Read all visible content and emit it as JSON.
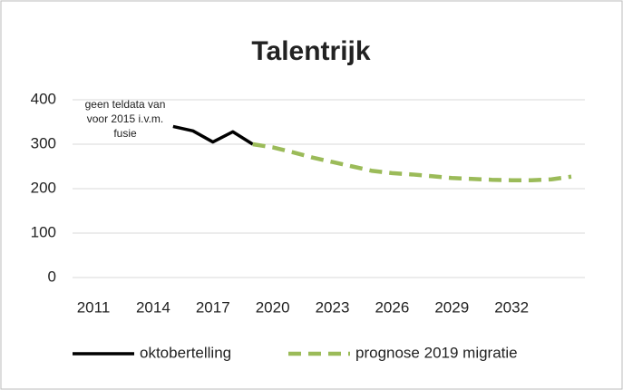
{
  "chart_data": {
    "type": "line",
    "title": "Talentrijk",
    "annotation": [
      "geen teldata van",
      "voor 2015 i.v.m.",
      "fusie"
    ],
    "x": [
      2015,
      2016,
      2017,
      2018,
      2019,
      2020,
      2021,
      2022,
      2023,
      2024,
      2025,
      2026,
      2027,
      2028,
      2029,
      2030,
      2031,
      2032,
      2033,
      2034,
      2035
    ],
    "series": [
      {
        "name": "oktobertelling",
        "color": "#000000",
        "dash": false,
        "values": [
          340,
          330,
          305,
          328,
          300,
          null,
          null,
          null,
          null,
          null,
          null,
          null,
          null,
          null,
          null,
          null,
          null,
          null,
          null,
          null,
          null
        ]
      },
      {
        "name": "prognose 2019 migratie",
        "color": "#9bbb59",
        "dash": true,
        "values": [
          null,
          null,
          null,
          null,
          300,
          293,
          282,
          270,
          260,
          250,
          240,
          235,
          232,
          228,
          224,
          222,
          220,
          219,
          219,
          221,
          227
        ]
      }
    ],
    "xlim": [
      2011,
      2035
    ],
    "xticks": [
      2011,
      2014,
      2017,
      2020,
      2023,
      2026,
      2029,
      2032
    ],
    "ylim": [
      0,
      400
    ],
    "yticks": [
      0,
      100,
      200,
      300,
      400
    ],
    "grid": true,
    "legend": "bottom"
  }
}
